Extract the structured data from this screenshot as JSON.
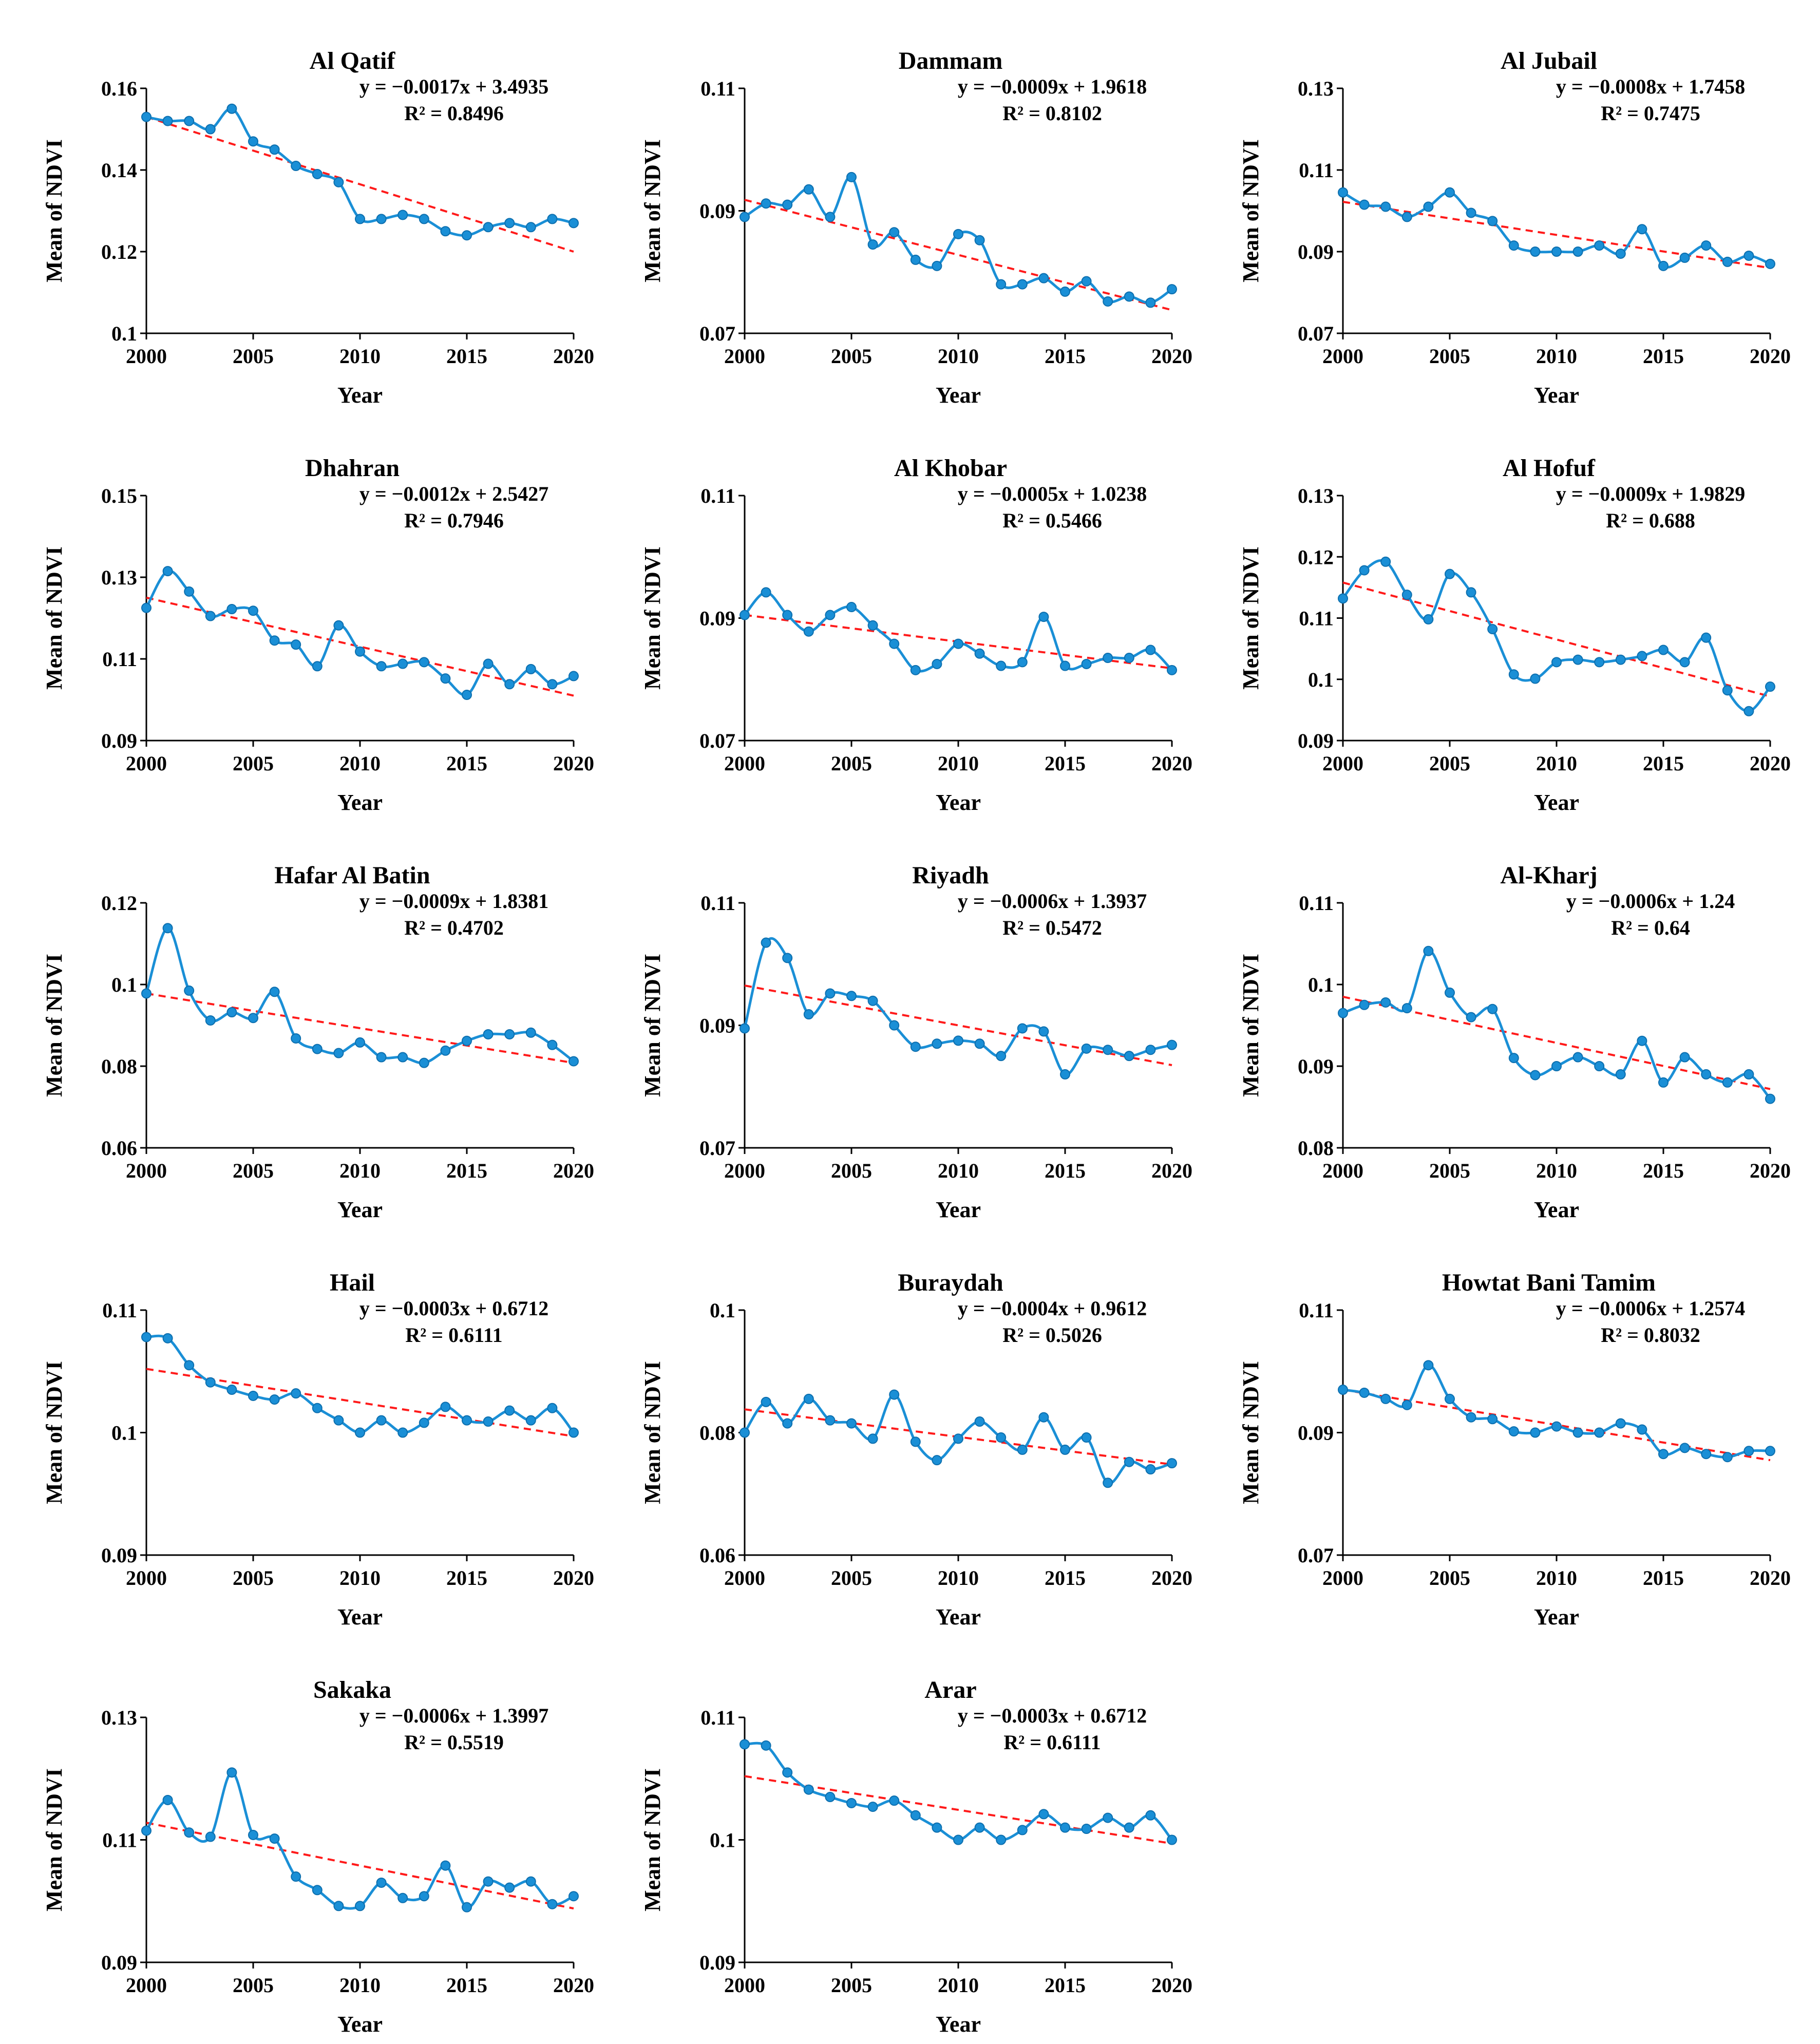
{
  "figure": {
    "x_axis_label": "Year",
    "y_axis_label": "Mean of NDVI",
    "x_ticks": [
      "2000",
      "2005",
      "2010",
      "2015",
      "2020"
    ],
    "series_color": "#1a8fd6",
    "marker_color": "#1a8fd6",
    "trend_color": "#ff1a1a"
  },
  "chart_data": [
    {
      "type": "line",
      "title": "Al Qatif",
      "equation": "y = −0.0017x + 3.4935",
      "r2": "R² = 0.8496",
      "xlabel": "Year",
      "ylabel": "Mean of NDVI",
      "xlim": [
        2000,
        2020
      ],
      "ylim": [
        0.1,
        0.16
      ],
      "y_ticks": [
        "0.1",
        "0.12",
        "0.14",
        "0.16"
      ],
      "x": [
        2000,
        2001,
        2002,
        2003,
        2004,
        2005,
        2006,
        2007,
        2008,
        2009,
        2010,
        2011,
        2012,
        2013,
        2014,
        2015,
        2016,
        2017,
        2018,
        2019,
        2020
      ],
      "values": [
        0.153,
        0.152,
        0.152,
        0.15,
        0.155,
        0.147,
        0.145,
        0.141,
        0.139,
        0.137,
        0.128,
        0.128,
        0.129,
        0.128,
        0.125,
        0.124,
        0.126,
        0.127,
        0.126,
        0.128,
        0.127
      ],
      "trend": [
        0.153,
        0.12
      ]
    },
    {
      "type": "line",
      "title": "Dammam",
      "equation": "y = −0.0009x + 1.9618",
      "r2": "R² = 0.8102",
      "xlabel": "Year",
      "ylabel": "Mean of NDVI",
      "xlim": [
        2000,
        2020
      ],
      "ylim": [
        0.07,
        0.11
      ],
      "y_ticks": [
        "0.07",
        "0.09",
        "0.11"
      ],
      "x": [
        2000,
        2001,
        2002,
        2003,
        2004,
        2005,
        2006,
        2007,
        2008,
        2009,
        2010,
        2011,
        2012,
        2013,
        2014,
        2015,
        2016,
        2017,
        2018,
        2019,
        2020
      ],
      "values": [
        0.089,
        0.0912,
        0.091,
        0.0935,
        0.089,
        0.0955,
        0.0845,
        0.0865,
        0.082,
        0.081,
        0.0862,
        0.0852,
        0.078,
        0.078,
        0.079,
        0.0768,
        0.0785,
        0.0752,
        0.076,
        0.075,
        0.0772
      ],
      "trend": [
        0.0918,
        0.0738
      ]
    },
    {
      "type": "line",
      "title": "Al Jubail",
      "equation": "y = −0.0008x + 1.7458",
      "r2": "R² = 0.7475",
      "xlabel": "Year",
      "ylabel": "Mean of NDVI",
      "xlim": [
        2000,
        2020
      ],
      "ylim": [
        0.07,
        0.13
      ],
      "y_ticks": [
        "0.07",
        "0.09",
        "0.11",
        "0.13"
      ],
      "x": [
        2000,
        2001,
        2002,
        2003,
        2004,
        2005,
        2006,
        2007,
        2008,
        2009,
        2010,
        2011,
        2012,
        2013,
        2014,
        2015,
        2016,
        2017,
        2018,
        2019,
        2020
      ],
      "values": [
        0.1045,
        0.1015,
        0.101,
        0.0985,
        0.101,
        0.1045,
        0.0995,
        0.0975,
        0.0915,
        0.09,
        0.09,
        0.09,
        0.0915,
        0.0895,
        0.0955,
        0.0865,
        0.0885,
        0.0915,
        0.0875,
        0.089,
        0.087
      ],
      "trend": [
        0.1022,
        0.086
      ]
    },
    {
      "type": "line",
      "title": "Dhahran",
      "equation": "y = −0.0012x + 2.5427",
      "r2": "R² = 0.7946",
      "xlabel": "Year",
      "ylabel": "Mean of NDVI",
      "xlim": [
        2000,
        2020
      ],
      "ylim": [
        0.09,
        0.15
      ],
      "y_ticks": [
        "0.09",
        "0.11",
        "0.13",
        "0.15"
      ],
      "x": [
        2000,
        2001,
        2002,
        2003,
        2004,
        2005,
        2006,
        2007,
        2008,
        2009,
        2010,
        2011,
        2012,
        2013,
        2014,
        2015,
        2016,
        2017,
        2018,
        2019,
        2020
      ],
      "values": [
        0.1225,
        0.1315,
        0.1265,
        0.1205,
        0.1222,
        0.1218,
        0.1145,
        0.1135,
        0.1082,
        0.1182,
        0.1118,
        0.1082,
        0.1088,
        0.1092,
        0.1052,
        0.1012,
        0.1088,
        0.1038,
        0.1075,
        0.1038,
        0.1058
      ],
      "trend": [
        0.125,
        0.101
      ]
    },
    {
      "type": "line",
      "title": "Al Khobar",
      "equation": "y = −0.0005x + 1.0238",
      "r2": "R² = 0.5466",
      "xlabel": "Year",
      "ylabel": "Mean of NDVI",
      "xlim": [
        2000,
        2020
      ],
      "ylim": [
        0.07,
        0.11
      ],
      "y_ticks": [
        "0.07",
        "0.09",
        "0.11"
      ],
      "x": [
        2000,
        2001,
        2002,
        2003,
        2004,
        2005,
        2006,
        2007,
        2008,
        2009,
        2010,
        2011,
        2012,
        2013,
        2014,
        2015,
        2016,
        2017,
        2018,
        2019,
        2020
      ],
      "values": [
        0.0905,
        0.0942,
        0.0905,
        0.0878,
        0.0905,
        0.0918,
        0.0888,
        0.0858,
        0.0815,
        0.0825,
        0.0858,
        0.0842,
        0.0822,
        0.0828,
        0.0902,
        0.0822,
        0.0825,
        0.0835,
        0.0835,
        0.0848,
        0.0815
      ],
      "trend": [
        0.0905,
        0.0818
      ]
    },
    {
      "type": "line",
      "title": "Al Hofuf",
      "equation": "y = −0.0009x + 1.9829",
      "r2": "R² = 0.688",
      "xlabel": "Year",
      "ylabel": "Mean of NDVI",
      "xlim": [
        2000,
        2020
      ],
      "ylim": [
        0.09,
        0.13
      ],
      "y_ticks": [
        "0.09",
        "0.1",
        "0.11",
        "0.12",
        "0.13"
      ],
      "x": [
        2000,
        2001,
        2002,
        2003,
        2004,
        2005,
        2006,
        2007,
        2008,
        2009,
        2010,
        2011,
        2012,
        2013,
        2014,
        2015,
        2016,
        2017,
        2018,
        2019,
        2020
      ],
      "values": [
        0.1132,
        0.1178,
        0.1192,
        0.1138,
        0.1098,
        0.1172,
        0.1142,
        0.1082,
        0.1008,
        0.1001,
        0.1028,
        0.1032,
        0.1028,
        0.1032,
        0.1038,
        0.1048,
        0.1028,
        0.1068,
        0.0982,
        0.0948,
        0.0988
      ],
      "trend": [
        0.1158,
        0.0972
      ]
    },
    {
      "type": "line",
      "title": "Hafar Al Batin",
      "equation": "y = −0.0009x + 1.8381",
      "r2": "R² = 0.4702",
      "xlabel": "Year",
      "ylabel": "Mean of NDVI",
      "xlim": [
        2000,
        2020
      ],
      "ylim": [
        0.06,
        0.12
      ],
      "y_ticks": [
        "0.06",
        "0.08",
        "0.1",
        "0.12"
      ],
      "x": [
        2000,
        2001,
        2002,
        2003,
        2004,
        2005,
        2006,
        2007,
        2008,
        2009,
        2010,
        2011,
        2012,
        2013,
        2014,
        2015,
        2016,
        2017,
        2018,
        2019,
        2020
      ],
      "values": [
        0.0978,
        0.1138,
        0.0985,
        0.0912,
        0.0932,
        0.0918,
        0.0982,
        0.0868,
        0.0842,
        0.0832,
        0.0858,
        0.0822,
        0.0822,
        0.0808,
        0.0838,
        0.0862,
        0.0878,
        0.0878,
        0.0882,
        0.0852,
        0.0812
      ],
      "trend": [
        0.0978,
        0.0808
      ]
    },
    {
      "type": "line",
      "title": "Riyadh",
      "equation": "y = −0.0006x + 1.3937",
      "r2": "R² = 0.5472",
      "xlabel": "Year",
      "ylabel": "Mean of NDVI",
      "xlim": [
        2000,
        2020
      ],
      "ylim": [
        0.07,
        0.11
      ],
      "y_ticks": [
        "0.07",
        "0.09",
        "0.11"
      ],
      "x": [
        2000,
        2001,
        2002,
        2003,
        2004,
        2005,
        2006,
        2007,
        2008,
        2009,
        2010,
        2011,
        2012,
        2013,
        2014,
        2015,
        2016,
        2017,
        2018,
        2019,
        2020
      ],
      "values": [
        0.0895,
        0.1035,
        0.101,
        0.0918,
        0.0952,
        0.0948,
        0.094,
        0.09,
        0.0865,
        0.087,
        0.0875,
        0.087,
        0.085,
        0.0895,
        0.089,
        0.082,
        0.0862,
        0.086,
        0.085,
        0.086,
        0.0868
      ],
      "trend": [
        0.0965,
        0.0835
      ]
    },
    {
      "type": "line",
      "title": "Al-Kharj",
      "equation": "y = −0.0006x + 1.24",
      "r2": "R² = 0.64",
      "xlabel": "Year",
      "ylabel": "Mean of NDVI",
      "xlim": [
        2000,
        2020
      ],
      "ylim": [
        0.08,
        0.11
      ],
      "y_ticks": [
        "0.08",
        "0.09",
        "0.1",
        "0.11"
      ],
      "x": [
        2000,
        2001,
        2002,
        2003,
        2004,
        2005,
        2006,
        2007,
        2008,
        2009,
        2010,
        2011,
        2012,
        2013,
        2014,
        2015,
        2016,
        2017,
        2018,
        2019,
        2020
      ],
      "values": [
        0.0965,
        0.0975,
        0.0978,
        0.0971,
        0.1041,
        0.099,
        0.096,
        0.097,
        0.091,
        0.0889,
        0.09,
        0.0911,
        0.09,
        0.089,
        0.0931,
        0.088,
        0.0911,
        0.089,
        0.088,
        0.089,
        0.086
      ],
      "trend": [
        0.0985,
        0.0872
      ]
    },
    {
      "type": "line",
      "title": "Hail",
      "equation": "y = −0.0003x + 0.6712",
      "r2": "R² = 0.6111",
      "xlabel": "Year",
      "ylabel": "Mean of NDVI",
      "xlim": [
        2000,
        2020
      ],
      "ylim": [
        0.09,
        0.11
      ],
      "y_ticks": [
        "0.09",
        "0.1",
        "0.11"
      ],
      "x": [
        2000,
        2001,
        2002,
        2003,
        2004,
        2005,
        2006,
        2007,
        2008,
        2009,
        2010,
        2011,
        2012,
        2013,
        2014,
        2015,
        2016,
        2017,
        2018,
        2019,
        2020
      ],
      "values": [
        0.1078,
        0.1077,
        0.1055,
        0.1041,
        0.1035,
        0.103,
        0.1027,
        0.1032,
        0.102,
        0.101,
        0.1,
        0.101,
        0.1,
        0.1008,
        0.1021,
        0.101,
        0.1009,
        0.1018,
        0.101,
        0.102,
        0.1
      ],
      "trend": [
        0.1052,
        0.0997
      ]
    },
    {
      "type": "line",
      "title": "Buraydah",
      "equation": "y = −0.0004x + 0.9612",
      "r2": "R² = 0.5026",
      "xlabel": "Year",
      "ylabel": "Mean of NDVI",
      "xlim": [
        2000,
        2020
      ],
      "ylim": [
        0.06,
        0.1
      ],
      "y_ticks": [
        "0.06",
        "0.08",
        "0.1"
      ],
      "x": [
        2000,
        2001,
        2002,
        2003,
        2004,
        2005,
        2006,
        2007,
        2008,
        2009,
        2010,
        2011,
        2012,
        2013,
        2014,
        2015,
        2016,
        2017,
        2018,
        2019,
        2020
      ],
      "values": [
        0.08,
        0.085,
        0.0815,
        0.0855,
        0.082,
        0.0815,
        0.079,
        0.0862,
        0.0785,
        0.0755,
        0.079,
        0.0818,
        0.0792,
        0.0772,
        0.0825,
        0.0772,
        0.0792,
        0.0718,
        0.0752,
        0.074,
        0.075
      ],
      "trend": [
        0.0838,
        0.0748
      ]
    },
    {
      "type": "line",
      "title": "Howtat Bani Tamim",
      "equation": "y = −0.0006x + 1.2574",
      "r2": "R² = 0.8032",
      "xlabel": "Year",
      "ylabel": "Mean of NDVI",
      "xlim": [
        2000,
        2020
      ],
      "ylim": [
        0.07,
        0.11
      ],
      "y_ticks": [
        "0.07",
        "0.09",
        "0.11"
      ],
      "x": [
        2000,
        2001,
        2002,
        2003,
        2004,
        2005,
        2006,
        2007,
        2008,
        2009,
        2010,
        2011,
        2012,
        2013,
        2014,
        2015,
        2016,
        2017,
        2018,
        2019,
        2020
      ],
      "values": [
        0.097,
        0.0965,
        0.0955,
        0.0945,
        0.101,
        0.0955,
        0.0925,
        0.0922,
        0.0902,
        0.09,
        0.091,
        0.09,
        0.09,
        0.0915,
        0.0905,
        0.0865,
        0.0875,
        0.0865,
        0.086,
        0.087,
        0.087
      ],
      "trend": [
        0.097,
        0.0855
      ]
    },
    {
      "type": "line",
      "title": "Sakaka",
      "equation": "y = −0.0006x + 1.3997",
      "r2": "R² = 0.5519",
      "xlabel": "Year",
      "ylabel": "Mean of NDVI",
      "xlim": [
        2000,
        2020
      ],
      "ylim": [
        0.09,
        0.13
      ],
      "y_ticks": [
        "0.09",
        "0.11",
        "0.13"
      ],
      "x": [
        2000,
        2001,
        2002,
        2003,
        2004,
        2005,
        2006,
        2007,
        2008,
        2009,
        2010,
        2011,
        2012,
        2013,
        2014,
        2015,
        2016,
        2017,
        2018,
        2019,
        2020
      ],
      "values": [
        0.1115,
        0.1165,
        0.1112,
        0.1105,
        0.121,
        0.1108,
        0.1102,
        0.104,
        0.1018,
        0.0992,
        0.0992,
        0.103,
        0.1005,
        0.1008,
        0.1058,
        0.099,
        0.1032,
        0.1022,
        0.1032,
        0.0995,
        0.1008
      ],
      "trend": [
        0.1128,
        0.0988
      ]
    },
    {
      "type": "line",
      "title": "Arar",
      "equation": "y = −0.0003x + 0.6712",
      "r2": "R² = 0.6111",
      "xlabel": "Year",
      "ylabel": "Mean of NDVI",
      "xlim": [
        2000,
        2020
      ],
      "ylim": [
        0.09,
        0.11
      ],
      "y_ticks": [
        "0.09",
        "0.1",
        "0.11"
      ],
      "x": [
        2000,
        2001,
        2002,
        2003,
        2004,
        2005,
        2006,
        2007,
        2008,
        2009,
        2010,
        2011,
        2012,
        2013,
        2014,
        2015,
        2016,
        2017,
        2018,
        2019,
        2020
      ],
      "values": [
        0.1078,
        0.1077,
        0.1055,
        0.1041,
        0.1035,
        0.103,
        0.1027,
        0.1032,
        0.102,
        0.101,
        0.1,
        0.101,
        0.1,
        0.1008,
        0.1021,
        0.101,
        0.1009,
        0.1018,
        0.101,
        0.102,
        0.1
      ],
      "trend": [
        0.1052,
        0.0997
      ]
    }
  ]
}
